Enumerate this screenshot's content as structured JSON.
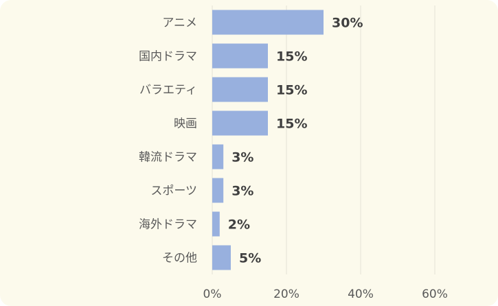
{
  "chart_data": {
    "type": "bar",
    "orientation": "horizontal",
    "categories": [
      "アニメ",
      "国内ドラマ",
      "バラエティ",
      "映画",
      "韓流ドラマ",
      "スポーツ",
      "海外ドラマ",
      "その他"
    ],
    "values": [
      30,
      15,
      15,
      15,
      3,
      3,
      2,
      5
    ],
    "data_labels": [
      "30%",
      "15%",
      "15%",
      "15%",
      "3%",
      "3%",
      "2%",
      "5%"
    ],
    "x_ticks": [
      "0%",
      "20%",
      "40%",
      "60%"
    ],
    "x_tick_values": [
      0,
      20,
      40,
      60
    ],
    "xlim": [
      0,
      70
    ],
    "grid": true,
    "legend": "none",
    "title": "",
    "xlabel": "",
    "ylabel": "",
    "colors": {
      "bar": "#98b0de",
      "background": "#fcfaec",
      "grid": "#e3e1d6",
      "label_text": "#595959",
      "value_text": "#404040"
    }
  }
}
